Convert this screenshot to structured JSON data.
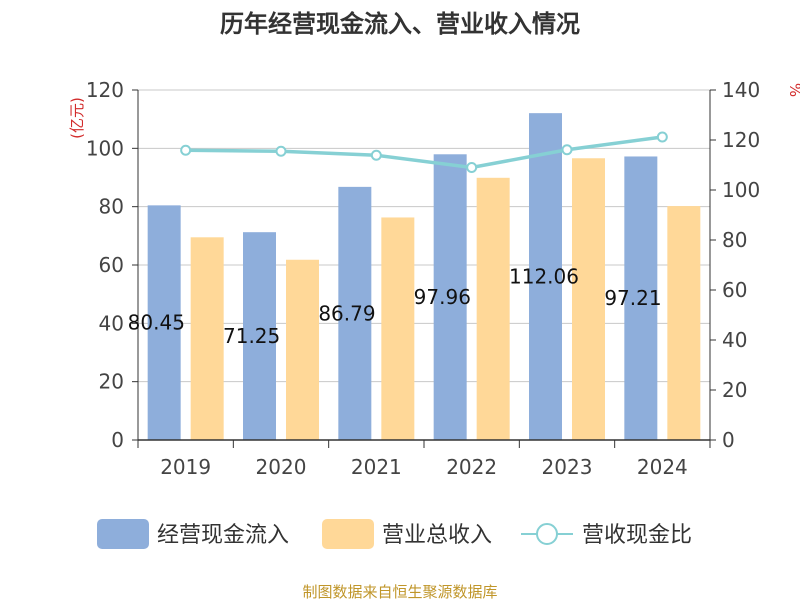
{
  "chart_data": {
    "type": "bar",
    "title": "历年经营现金流入、营业收入情况",
    "categories": [
      "2019",
      "2020",
      "2021",
      "2022",
      "2023",
      "2024"
    ],
    "series": [
      {
        "name": "经营现金流入",
        "kind": "bar",
        "axis": "left",
        "color": "#8eaedb",
        "values": [
          80.45,
          71.25,
          86.79,
          97.96,
          112.06,
          97.21
        ],
        "labels": [
          "80.45",
          "71.25",
          "86.79",
          "97.96",
          "112.06",
          "97.21"
        ]
      },
      {
        "name": "营业总收入",
        "kind": "bar",
        "axis": "left",
        "color": "#ffd898",
        "values": [
          69.5,
          61.8,
          76.3,
          89.9,
          96.6,
          80.2
        ]
      },
      {
        "name": "营收现金比",
        "kind": "line",
        "axis": "right",
        "color": "#86d0d4",
        "values": [
          115.9,
          115.5,
          113.9,
          109.0,
          116.1,
          121.2
        ]
      }
    ],
    "y_left": {
      "unit": "(亿元)",
      "ylim": [
        0,
        120
      ],
      "ticks": [
        "0",
        "20",
        "40",
        "60",
        "80",
        "100",
        "120"
      ]
    },
    "y_right": {
      "unit": "%",
      "ylim": [
        0,
        140
      ],
      "ticks": [
        "0",
        "20",
        "40",
        "60",
        "80",
        "100",
        "120",
        "140"
      ]
    },
    "grid": true,
    "legend_position": "bottom"
  },
  "footer": {
    "source": "制图数据来自恒生聚源数据库"
  }
}
